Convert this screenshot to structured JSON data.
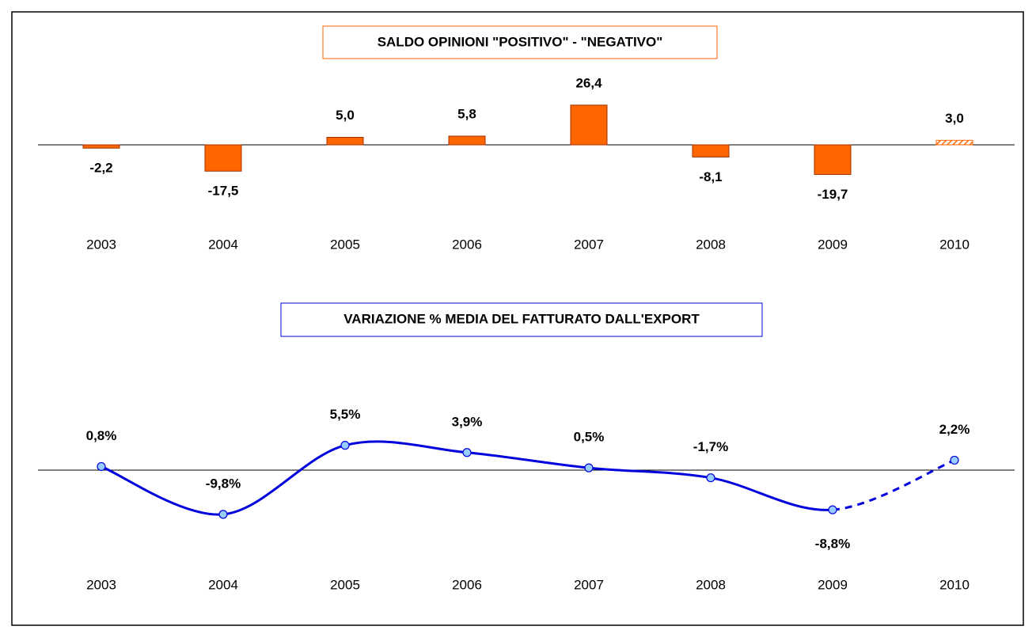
{
  "chart_data": [
    {
      "type": "bar",
      "title": "SALDO OPINIONI \"POSITIVO\" - \"NEGATIVO\"",
      "categories": [
        "2003",
        "2004",
        "2005",
        "2006",
        "2007",
        "2008",
        "2009",
        "2010"
      ],
      "values": [
        -2.2,
        -17.5,
        5.0,
        5.8,
        26.4,
        -8.1,
        -19.7,
        3.0
      ],
      "value_labels": [
        "-2,2",
        "-17,5",
        "5,0",
        "5,8",
        "26,4",
        "-8,1",
        "-19,7",
        "3,0"
      ],
      "color": "#ff6600"
    },
    {
      "type": "line",
      "title": "VARIAZIONE % MEDIA DEL FATTURATO DALL'EXPORT",
      "categories": [
        "2003",
        "2004",
        "2005",
        "2006",
        "2007",
        "2008",
        "2009",
        "2010"
      ],
      "values": [
        0.8,
        -9.8,
        5.5,
        3.9,
        0.5,
        -1.7,
        -8.8,
        2.2
      ],
      "value_labels": [
        "0,8%",
        "-9,8%",
        "5,5%",
        "3,9%",
        "0,5%",
        "-1,7%",
        "-8,8%",
        "2,2%"
      ],
      "color": "#0000dd"
    }
  ]
}
